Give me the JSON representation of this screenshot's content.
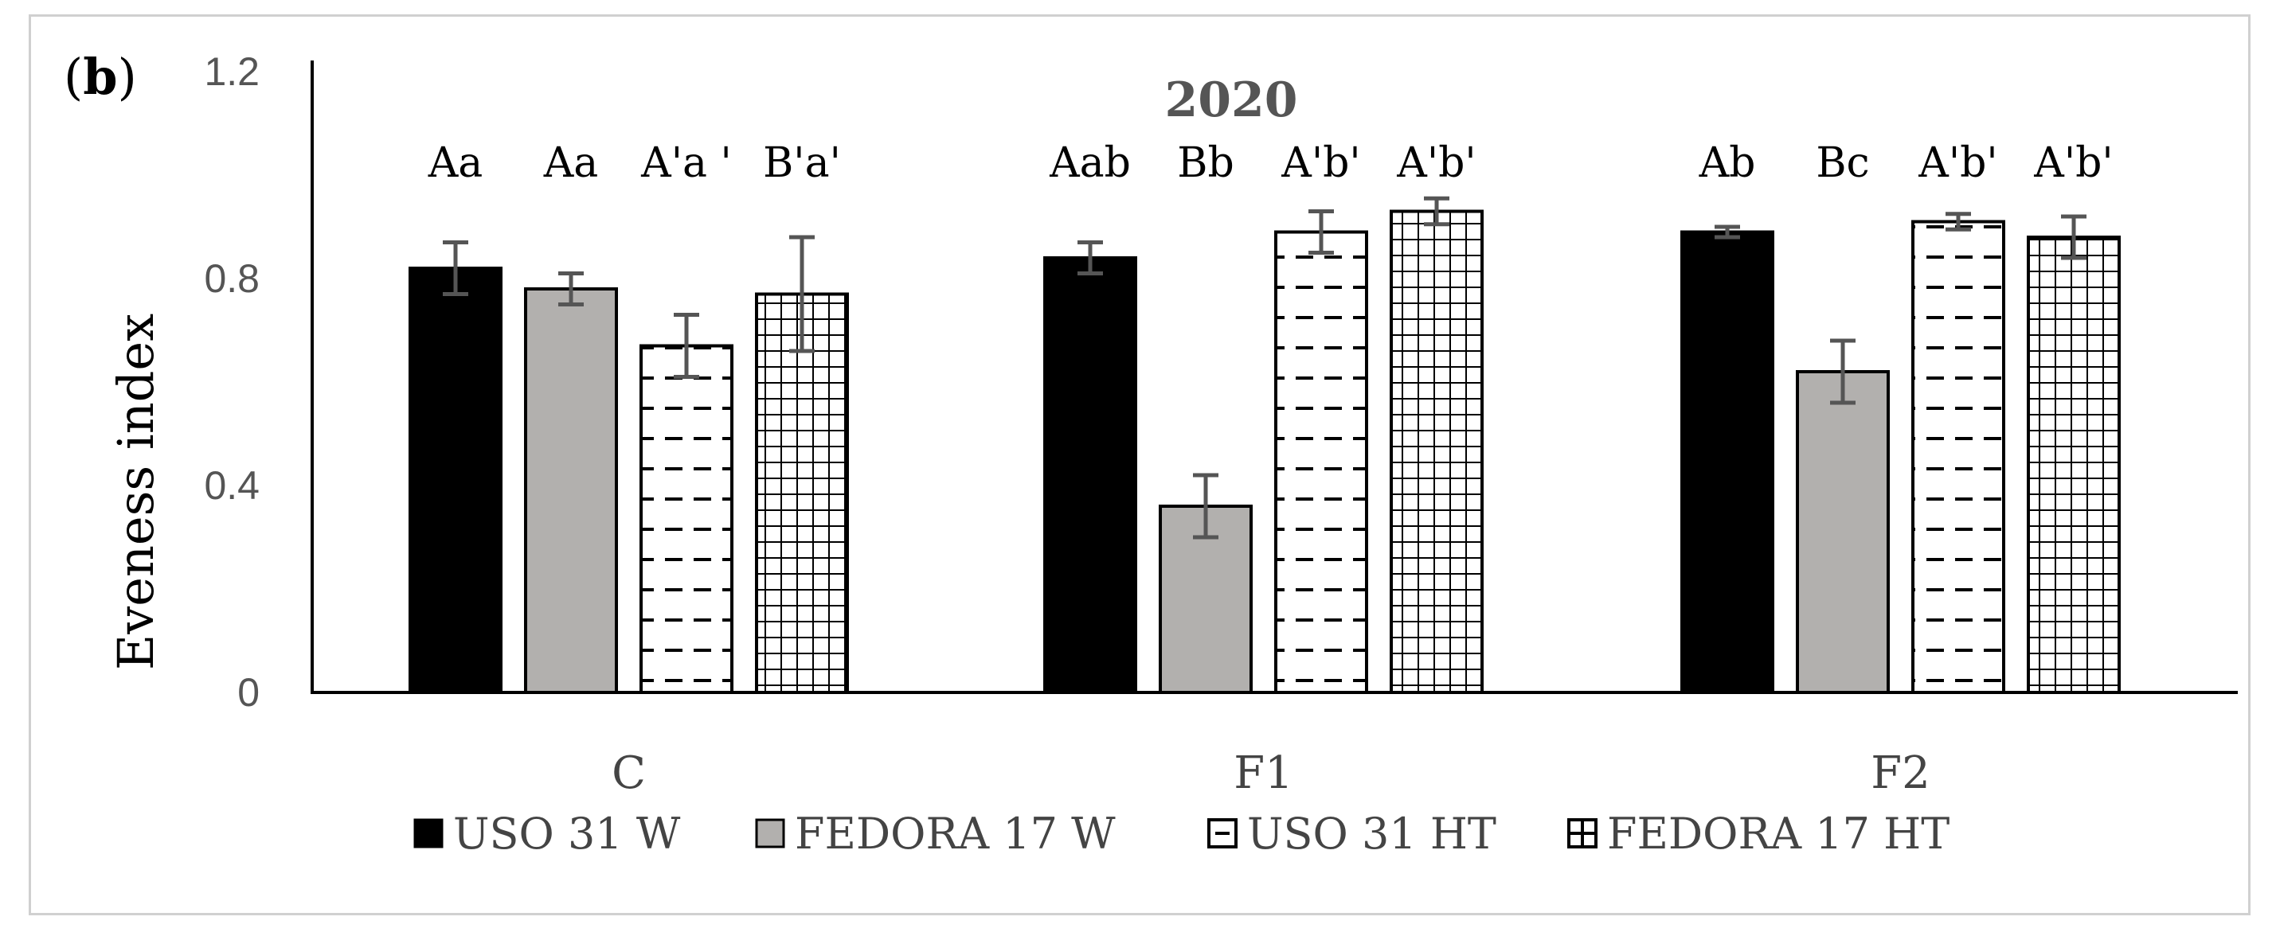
{
  "panel_label": "b",
  "chart_data": {
    "type": "bar",
    "title": "2020",
    "xlabel": "",
    "ylabel": "Eveness index",
    "ylim": [
      0,
      1.2
    ],
    "yticks": [
      "0",
      "0.4",
      "0.8",
      "1.2"
    ],
    "categories": [
      "C",
      "F1",
      "F2"
    ],
    "series": [
      {
        "name": "USO 31 W",
        "values": [
          0.82,
          0.84,
          0.89
        ],
        "errors": [
          0.05,
          0.03,
          0.01
        ],
        "labels": [
          "Aa",
          "Aab",
          "Ab"
        ],
        "fill": "#000000",
        "pattern": "solid"
      },
      {
        "name": "FEDORA 17 W",
        "values": [
          0.78,
          0.36,
          0.62
        ],
        "errors": [
          0.03,
          0.06,
          0.06
        ],
        "labels": [
          "Aa",
          "Bb",
          "Bc"
        ],
        "fill": "#b2b0ae",
        "pattern": "solid"
      },
      {
        "name": "USO 31 HT",
        "values": [
          0.67,
          0.89,
          0.91
        ],
        "errors": [
          0.06,
          0.04,
          0.015
        ],
        "labels": [
          "A'a '",
          "A'b'",
          "A'b'"
        ],
        "fill": "#ffffff",
        "pattern": "dash"
      },
      {
        "name": "FEDORA 17 HT",
        "values": [
          0.77,
          0.93,
          0.88
        ],
        "errors": [
          0.11,
          0.025,
          0.04
        ],
        "labels": [
          "B'a'",
          "A'b'",
          "A'b'"
        ],
        "fill": "#ffffff",
        "pattern": "grid"
      }
    ],
    "legend_position": "bottom",
    "grid": false
  }
}
